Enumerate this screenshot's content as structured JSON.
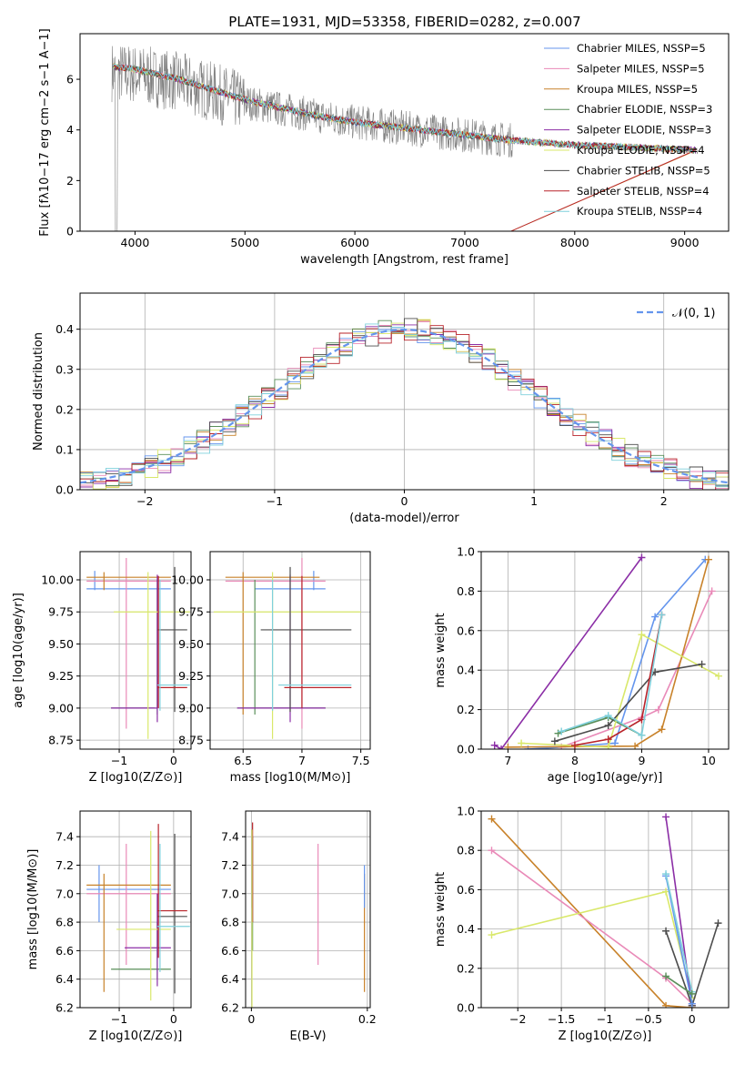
{
  "title": "PLATE=1931, MJD=53358, FIBERID=0282, z=0.007",
  "colors": {
    "c0": "#6495ed",
    "c1": "#e98ab8",
    "c2": "#c8822a",
    "c3": "#5a8f5a",
    "c4": "#8b2ea6",
    "c5": "#d9e86a",
    "c6": "#4d4d4d",
    "c7": "#b8232a",
    "c8": "#7fd0dc",
    "data": "#7f7f7f"
  },
  "legend": [
    {
      "label": "Chabrier MILES, NSSP=5"
    },
    {
      "label": "Salpeter MILES, NSSP=5"
    },
    {
      "label": "Kroupa MILES, NSSP=5"
    },
    {
      "label": "Chabrier ELODIE, NSSP=3"
    },
    {
      "label": "Salpeter ELODIE, NSSP=3"
    },
    {
      "label": "Kroupa ELODIE, NSSP=4"
    },
    {
      "label": "Chabrier STELIB, NSSP=5"
    },
    {
      "label": "Salpeter STELIB, NSSP=4"
    },
    {
      "label": "Kroupa STELIB, NSSP=4"
    }
  ],
  "chart_data": [
    {
      "type": "line",
      "title": "PLATE=1931, MJD=53358, FIBERID=0282, z=0.007",
      "xlabel": "wavelength [Angstrom, rest frame]",
      "ylabel": "Flux [fλ10−17 erg cm−2 s−1 A−1]",
      "xlim": [
        3500,
        9400
      ],
      "ylim": [
        0,
        7.8
      ],
      "xticks": [
        4000,
        5000,
        6000,
        7000,
        8000,
        9000
      ],
      "yticks": [
        0,
        2,
        4,
        6
      ],
      "observed_continuum": {
        "x": [
          3800,
          4000,
          4400,
          5000,
          5600,
          6000,
          6600,
          7000,
          7400,
          8000,
          8600,
          9100
        ],
        "y": [
          6.3,
          6.2,
          5.9,
          5.1,
          4.6,
          4.3,
          4.0,
          3.8,
          3.6,
          3.4,
          3.3,
          3.2
        ]
      },
      "model_continuum": {
        "x": [
          3800,
          4000,
          4400,
          5000,
          5600,
          6000,
          6600,
          7000,
          7400,
          8000,
          8600,
          9100
        ],
        "y": [
          6.5,
          6.4,
          6.0,
          5.2,
          4.6,
          4.3,
          4.0,
          3.8,
          3.6,
          3.4,
          3.3,
          3.2
        ]
      }
    },
    {
      "type": "line",
      "xlabel": "(data-model)/error",
      "ylabel": "Normed distribution",
      "xlim": [
        -2.5,
        2.5
      ],
      "ylim": [
        0,
        0.49
      ],
      "xticks": [
        -2,
        -1,
        0,
        1,
        2
      ],
      "yticks": [
        0.0,
        0.1,
        0.2,
        0.3,
        0.4
      ],
      "reference": {
        "name": "𝒩(0, 1)",
        "mean": 0,
        "sigma": 1
      }
    },
    {
      "type": "scatter",
      "xlabel": "Z [log10(Z/Z⊙)]",
      "ylabel": "age  [log10(age/yr)]",
      "xlim": [
        -1.72,
        0.32
      ],
      "ylim": [
        8.68,
        10.22
      ],
      "xticks": [
        -1,
        0
      ],
      "yticks": [
        8.75,
        9.0,
        9.25,
        9.5,
        9.75,
        10.0
      ],
      "points": [
        {
          "s": 0,
          "x": -0.5,
          "y": 9.93,
          "xerr": 1.1,
          "yerr": 0.0
        },
        {
          "s": 1,
          "x": -0.5,
          "y": 9.99,
          "xerr": 1.05,
          "yerr": 1.1
        },
        {
          "s": 2,
          "x": -0.6,
          "y": 10.02,
          "xerr": 1.05,
          "yerr": 0.0
        },
        {
          "s": 3,
          "x": -0.6,
          "y": 9.0,
          "xerr": 0.55,
          "yerr": 0.0
        },
        {
          "s": 4,
          "x": -0.6,
          "y": 9.0,
          "xerr": 0.55,
          "yerr": 0.0
        },
        {
          "s": 5,
          "x": -0.4,
          "y": 9.75,
          "xerr": 0.8,
          "yerr": 0.9
        },
        {
          "s": 6,
          "x": -0.05,
          "y": 9.61,
          "xerr": 0.3,
          "yerr": 0.0
        },
        {
          "s": 7,
          "x": -0.05,
          "y": 9.16,
          "xerr": 0.25,
          "yerr": 0.0
        },
        {
          "s": 8,
          "x": -0.05,
          "y": 9.18,
          "xerr": 0.3,
          "yerr": 0.0
        }
      ],
      "vlines": [
        {
          "s": 0,
          "x": -1.45,
          "y0": 9.93,
          "y1": 10.06
        },
        {
          "s": 1,
          "x": -0.87,
          "y0": 8.84,
          "y1": 10.17
        },
        {
          "s": 2,
          "x": -1.28,
          "y0": 9.93,
          "y1": 10.06
        },
        {
          "s": 3,
          "x": -0.3,
          "y0": 8.95,
          "y1": 10.0
        },
        {
          "s": 4,
          "x": -0.3,
          "y0": 8.89,
          "y1": 10.04
        },
        {
          "s": 5,
          "x": -0.47,
          "y0": 8.76,
          "y1": 10.06
        },
        {
          "s": 6,
          "x": 0.02,
          "y0": 8.97,
          "y1": 10.1
        },
        {
          "s": 7,
          "x": -0.28,
          "y0": 9.0,
          "y1": 10.03
        },
        {
          "s": 8,
          "x": -0.25,
          "y0": 8.98,
          "y1": 10.0
        }
      ]
    },
    {
      "type": "scatter",
      "xlabel": "mass [log10(M/M⊙)]",
      "xlim": [
        6.22,
        7.58
      ],
      "ylim": [
        8.68,
        10.22
      ],
      "xticks": [
        6.5,
        7.0,
        7.5
      ],
      "yticks": [
        8.75,
        9.0,
        9.25,
        9.5,
        9.75,
        10.0
      ]
    },
    {
      "type": "line",
      "xlabel": "age  [log10(age/yr)]",
      "ylabel": "mass weight",
      "xlim": [
        6.6,
        10.3
      ],
      "ylim": [
        0,
        1.0
      ],
      "xticks": [
        7,
        8,
        9,
        10
      ],
      "yticks": [
        0.0,
        0.2,
        0.4,
        0.6,
        0.8,
        1.0
      ],
      "series": [
        {
          "s": 0,
          "x": [
            7.3,
            7.8,
            8.6,
            9.2,
            9.95
          ],
          "y": [
            0.0,
            0.01,
            0.03,
            0.67,
            0.96
          ]
        },
        {
          "s": 1,
          "x": [
            7.8,
            9.0,
            9.25,
            10.05
          ],
          "y": [
            0.01,
            0.16,
            0.2,
            0.8
          ]
        },
        {
          "s": 2,
          "x": [
            7.0,
            8.9,
            9.3,
            10.0
          ],
          "y": [
            0.01,
            0.015,
            0.1,
            0.96
          ]
        },
        {
          "s": 3,
          "x": [
            7.75,
            8.5,
            9.0
          ],
          "y": [
            0.08,
            0.16,
            0.07
          ]
        },
        {
          "s": 4,
          "x": [
            6.8,
            6.9,
            9.0
          ],
          "y": [
            0.02,
            0.0,
            0.97
          ]
        },
        {
          "s": 5,
          "x": [
            7.2,
            8.5,
            9.0,
            10.15
          ],
          "y": [
            0.03,
            0.01,
            0.58,
            0.37
          ]
        },
        {
          "s": 6,
          "x": [
            7.7,
            8.5,
            9.2,
            9.9
          ],
          "y": [
            0.04,
            0.12,
            0.39,
            0.43
          ]
        },
        {
          "s": 7,
          "x": [
            8.0,
            8.5,
            9.0,
            9.3
          ],
          "y": [
            0.02,
            0.05,
            0.15,
            0.68
          ]
        },
        {
          "s": 8,
          "x": [
            7.8,
            8.5,
            9.0,
            9.3
          ],
          "y": [
            0.09,
            0.17,
            0.07,
            0.68
          ]
        }
      ]
    },
    {
      "type": "scatter",
      "xlabel": "Z [log10(Z/Z⊙)]",
      "ylabel": "mass [log10(M/M⊙)]",
      "xlim": [
        -1.72,
        0.32
      ],
      "ylim": [
        6.2,
        7.58
      ],
      "xticks": [
        -1,
        0
      ],
      "yticks": [
        6.2,
        6.4,
        6.6,
        6.8,
        7.0,
        7.2,
        7.4
      ]
    },
    {
      "type": "scatter",
      "xlabel": "E(B-V)",
      "xlim": [
        -0.01,
        0.205
      ],
      "ylim": [
        6.2,
        7.58
      ],
      "xticks": [
        0.0,
        0.2
      ],
      "yticks": [
        6.2,
        6.4,
        6.6,
        6.8,
        7.0,
        7.2,
        7.4
      ]
    },
    {
      "type": "line",
      "xlabel": "Z [log10(Z/Z⊙)]",
      "ylabel": "mass weight",
      "xlim": [
        -2.42,
        0.42
      ],
      "ylim": [
        0,
        1.0
      ],
      "xticks": [
        -2.0,
        -1.5,
        -1.0,
        -0.5,
        0.0
      ],
      "yticks": [
        0.0,
        0.2,
        0.4,
        0.6,
        0.8,
        1.0
      ],
      "series": [
        {
          "s": 2,
          "x": [
            -2.3,
            -0.3,
            0.0
          ],
          "y": [
            0.96,
            0.01,
            0.0
          ]
        },
        {
          "s": 1,
          "x": [
            -2.3,
            -0.3,
            0.0
          ],
          "y": [
            0.8,
            0.15,
            0.02
          ]
        },
        {
          "s": 5,
          "x": [
            -2.3,
            -0.3,
            0.0
          ],
          "y": [
            0.37,
            0.59,
            0.05
          ]
        },
        {
          "s": 4,
          "x": [
            -0.3,
            0.0
          ],
          "y": [
            0.97,
            0.01
          ]
        },
        {
          "s": 6,
          "x": [
            -0.3,
            0.0,
            0.3
          ],
          "y": [
            0.39,
            0.01,
            0.43
          ]
        },
        {
          "s": 0,
          "x": [
            -0.3,
            0.0
          ],
          "y": [
            0.67,
            0.02
          ]
        },
        {
          "s": 8,
          "x": [
            -0.3,
            0.0
          ],
          "y": [
            0.68,
            0.08
          ]
        },
        {
          "s": 3,
          "x": [
            -0.3,
            0.0
          ],
          "y": [
            0.16,
            0.07
          ]
        }
      ]
    }
  ]
}
